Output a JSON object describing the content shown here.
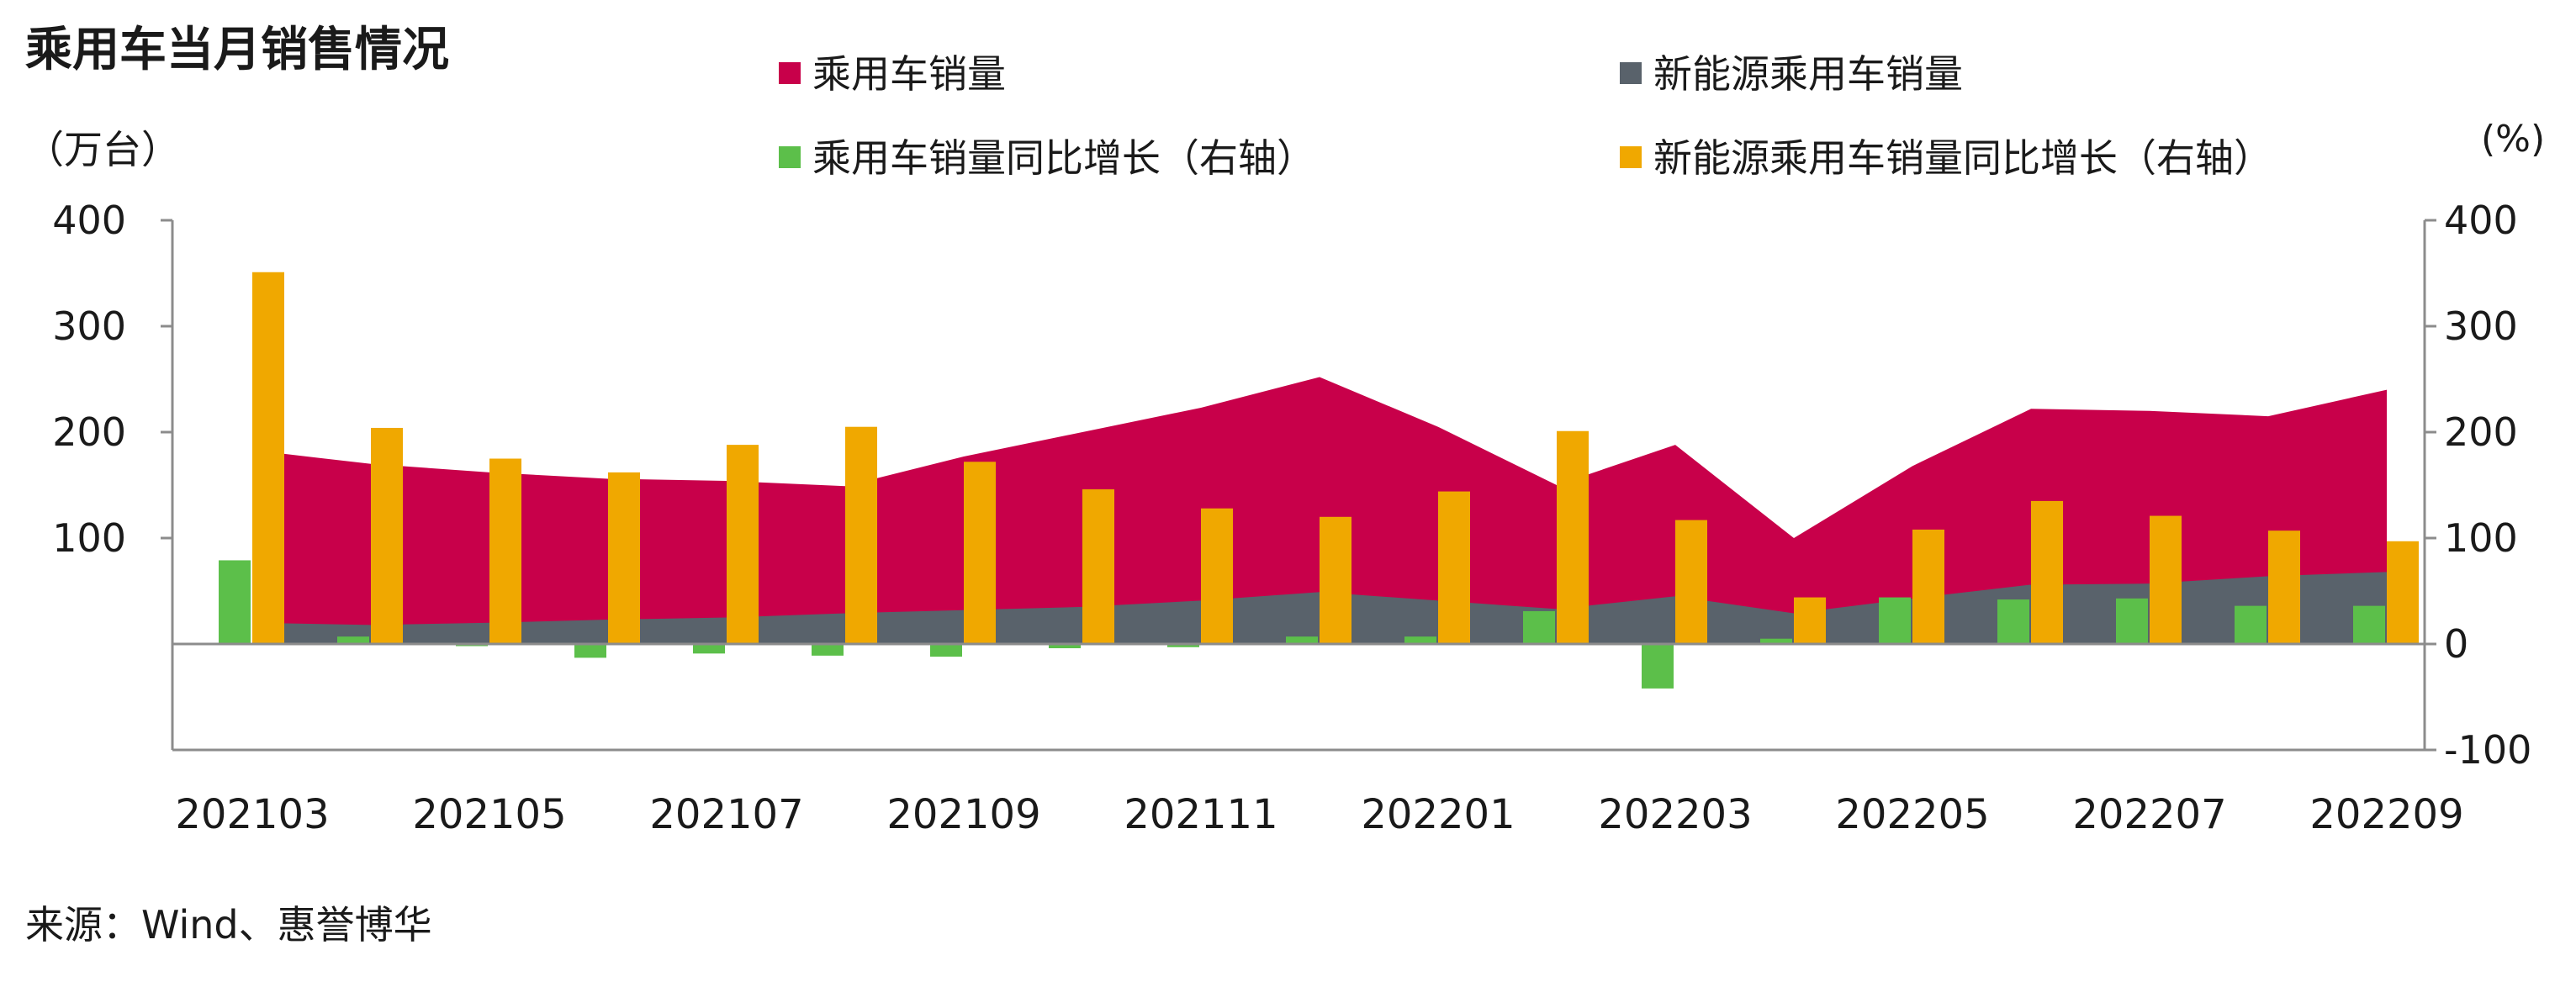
{
  "chart_data": {
    "type": "bar",
    "title": "乘用车当月销售情况",
    "left_unit": "（万台）",
    "right_unit": "(%)",
    "source": "来源：Wind、惠誉博华",
    "x": [
      "202103",
      "202104",
      "202105",
      "202106",
      "202107",
      "202108",
      "202109",
      "202110",
      "202111",
      "202112",
      "202201",
      "202202",
      "202203",
      "202204",
      "202205",
      "202206",
      "202207",
      "202208",
      "202209"
    ],
    "x_tick_labels": [
      "202103",
      "202105",
      "202107",
      "202109",
      "202111",
      "202201",
      "202203",
      "202205",
      "202207",
      "202209"
    ],
    "left_axis": {
      "ylim": [
        -100,
        400
      ],
      "ticks": [
        "400",
        "300",
        "200",
        "100"
      ],
      "tick_values": [
        400,
        300,
        200,
        100
      ]
    },
    "right_axis": {
      "ylim": [
        -100,
        400
      ],
      "ticks": [
        "400",
        "300",
        "200",
        "100",
        "0",
        "-100"
      ],
      "tick_values": [
        400,
        300,
        200,
        100,
        0,
        -100
      ]
    },
    "grid": false,
    "legend_placement": "top",
    "series": [
      {
        "name": "乘用车销量",
        "type": "area",
        "axis": "left",
        "color": "#c8004a",
        "values": [
          183,
          170,
          162,
          156,
          154,
          149,
          177,
          200,
          223,
          252,
          205,
          150,
          188,
          100,
          168,
          222,
          220,
          215,
          240
        ]
      },
      {
        "name": "新能源乘用车销量",
        "type": "area",
        "axis": "left",
        "color": "#59626b",
        "values": [
          20,
          18,
          20,
          23,
          25,
          29,
          32,
          35,
          41,
          49,
          41,
          33,
          45,
          29,
          43,
          56,
          57,
          64,
          68
        ]
      },
      {
        "name": "乘用车销量同比增长（右轴）",
        "type": "bar",
        "axis": "right",
        "color": "#5cbf4a",
        "values": [
          79,
          7,
          -2,
          -13,
          -9,
          -11,
          -12,
          -4,
          -3,
          7,
          7,
          31,
          -42,
          5,
          44,
          42,
          43,
          36,
          36
        ]
      },
      {
        "name": "新能源乘用车销量同比增长（右轴）",
        "type": "bar",
        "axis": "right",
        "color": "#f0a800",
        "values": [
          351,
          204,
          175,
          162,
          188,
          205,
          172,
          146,
          128,
          120,
          144,
          201,
          117,
          44,
          108,
          135,
          121,
          107,
          97
        ]
      }
    ]
  }
}
